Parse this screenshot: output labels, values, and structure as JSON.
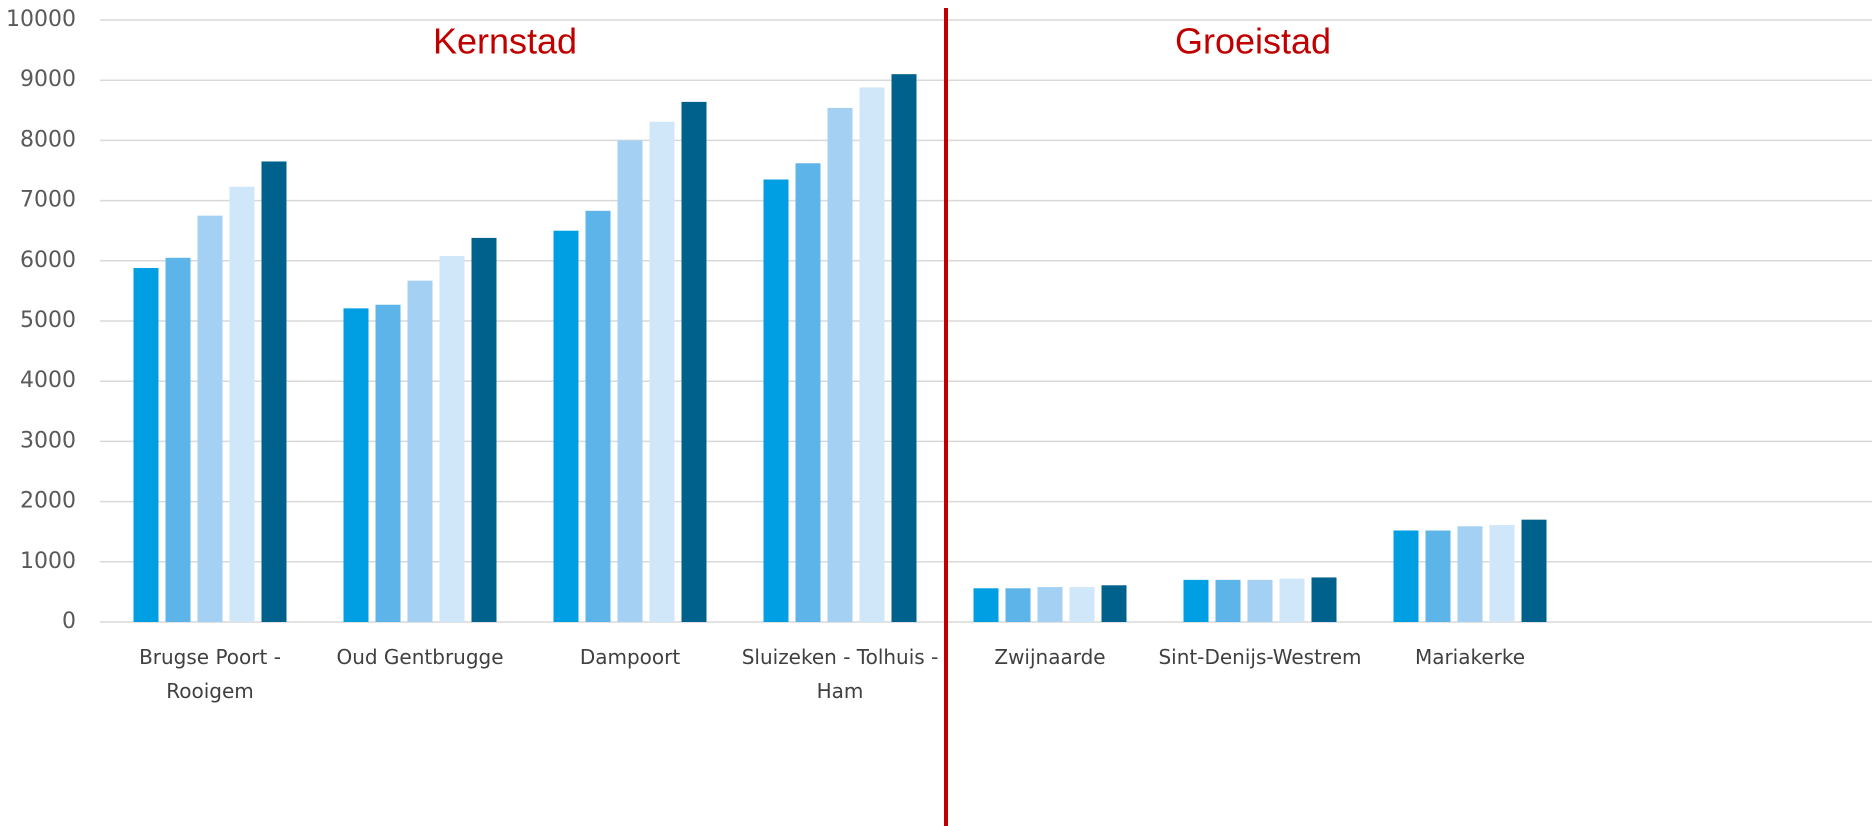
{
  "chart_data": {
    "type": "bar",
    "categories": [
      "Brugse Poort - Rooigem",
      "Oud Gentbrugge",
      "Dampoort",
      "Sluizeken - Tolhuis - Ham",
      "Zwijnaarde",
      "Sint-Denijs-Westrem",
      "Mariakerke"
    ],
    "series": [
      {
        "color": "#009fe3",
        "values": [
          5880,
          5210,
          6500,
          7350,
          560,
          700,
          1520
        ]
      },
      {
        "color": "#5db4e9",
        "values": [
          6050,
          5270,
          6830,
          7620,
          560,
          700,
          1520
        ]
      },
      {
        "color": "#a3d0f3",
        "values": [
          6750,
          5670,
          8000,
          8540,
          580,
          700,
          1590
        ]
      },
      {
        "color": "#d0e6f9",
        "values": [
          7230,
          6080,
          8310,
          8880,
          580,
          720,
          1610
        ]
      },
      {
        "color": "#00628c",
        "values": [
          7650,
          6380,
          8640,
          9100,
          610,
          740,
          1700
        ]
      }
    ],
    "annotations": [
      "Kernstad",
      "Groeistad"
    ],
    "ylim": [
      0,
      10000
    ],
    "yticks": [
      0,
      1000,
      2000,
      3000,
      4000,
      5000,
      6000,
      7000,
      8000,
      9000,
      10000
    ],
    "grid": true
  }
}
